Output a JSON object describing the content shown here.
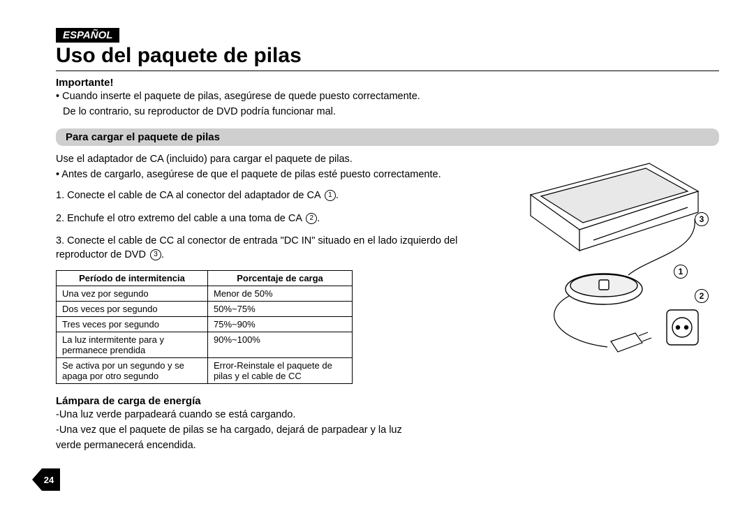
{
  "lang_badge": "ESPAÑOL",
  "title": "Uso del paquete de pilas",
  "importante_label": "Importante!",
  "importante_lines": [
    "• Cuando inserte el paquete de pilas, asegúrese de quede puesto correctamente.",
    "  De lo contrario, su reproductor de DVD podría funcionar mal."
  ],
  "section_bar": "Para cargar el paquete de pilas",
  "intro_lines": [
    "Use el adaptador de CA (incluido) para cargar el paquete de pilas.",
    "• Antes de cargarlo, asegúrese de que el paquete de pilas esté puesto correctamente."
  ],
  "steps": [
    {
      "n": "1.",
      "text": "Conecte el cable de CA al conector del adaptador de CA ",
      "ref": "1",
      "tail": "."
    },
    {
      "n": "2.",
      "text": "Enchufe el otro extremo del cable a una toma de CA ",
      "ref": "2",
      "tail": "."
    },
    {
      "n": "3.",
      "text": "Conecte el cable de CC al conector de entrada \"DC IN\" situado en el lado izquierdo del reproductor de DVD ",
      "ref": "3",
      "tail": "."
    }
  ],
  "table": {
    "headers": [
      "Período de intermitencia",
      "Porcentaje de carga"
    ],
    "rows": [
      [
        "Una vez por segundo",
        "Menor de 50%"
      ],
      [
        "Dos veces por segundo",
        "50%~75%"
      ],
      [
        "Tres veces por segundo",
        "75%~90%"
      ],
      [
        "La luz intermitente para y permanece prendida",
        "90%~100%"
      ],
      [
        "Se activa por un segundo y se apaga por otro segundo",
        "Error-Reinstale el paquete de pilas y el cable de CC"
      ]
    ],
    "col_widths": [
      "200px",
      "190px"
    ]
  },
  "lamp_title": "Lámpara de carga de energía",
  "lamp_lines": [
    "-Una luz verde parpadeará cuando se está cargando.",
    "-Una vez que el paquete de pilas se ha cargado, dejará de parpadear y la luz",
    " verde permanecerá encendida."
  ],
  "page_number": "24",
  "callouts": [
    "1",
    "2",
    "3"
  ],
  "colors": {
    "section_bg": "#cfcfcf",
    "badge_bg": "#000000",
    "text": "#000000"
  }
}
